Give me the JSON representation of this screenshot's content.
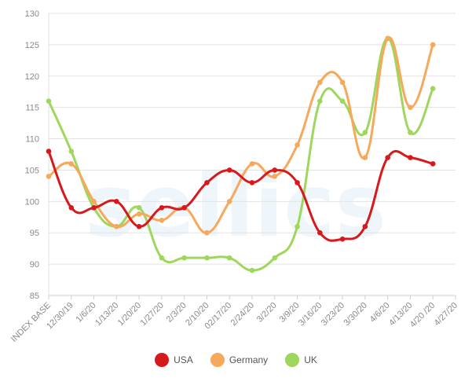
{
  "chart_data": {
    "type": "line",
    "title": "",
    "xlabel": "",
    "ylabel": "",
    "categories": [
      "INDEX BASE",
      "12/30/19",
      "1/6/20",
      "1/13/20",
      "1/20/20",
      "1/27/20",
      "2/3/20",
      "2/10/20",
      "02/17/20",
      "2/24/20",
      "3/2/20",
      "3/9/20",
      "3/16/20",
      "3/23/20",
      "3/30/20",
      "4/6/20",
      "4/13/20",
      "4/20 /20",
      "4/27/20"
    ],
    "ylim": [
      85,
      130
    ],
    "yticks": [
      85,
      90,
      95,
      100,
      105,
      110,
      115,
      120,
      125,
      130
    ],
    "grid": true,
    "legend_position": "bottom",
    "series": [
      {
        "name": "USA",
        "color": "#d7191c",
        "x": [
          "INDEX BASE",
          "12/30/19",
          "1/6/20",
          "1/13/20",
          "1/20/20",
          "1/27/20",
          "2/3/20",
          "2/10/20",
          "02/17/20",
          "2/24/20",
          "3/2/20",
          "3/9/20",
          "3/16/20",
          "3/23/20",
          "3/30/20",
          "4/6/20",
          "4/13/20",
          "4/20 /20"
        ],
        "values": [
          108,
          99,
          99,
          100,
          96,
          99,
          99,
          103,
          105,
          103,
          105,
          103,
          95,
          94,
          96,
          107,
          107,
          106
        ]
      },
      {
        "name": "Germany",
        "color": "#f7a85a",
        "x": [
          "INDEX BASE",
          "12/30/19",
          "1/6/20",
          "1/13/20",
          "1/20/20",
          "1/27/20",
          "2/3/20",
          "2/10/20",
          "02/17/20",
          "2/24/20",
          "3/2/20",
          "3/9/20",
          "3/16/20",
          "3/23/20",
          "3/30/20",
          "4/6/20",
          "4/13/20",
          "4/20 /20"
        ],
        "values": [
          104,
          106,
          100,
          96,
          98,
          97,
          99,
          95,
          100,
          106,
          104,
          109,
          119,
          119,
          107,
          126,
          115,
          125
        ]
      },
      {
        "name": "UK",
        "color": "#9fd65c",
        "x": [
          "INDEX BASE",
          "12/30/19",
          "1/6/20",
          "1/13/20",
          "1/20/20",
          "1/27/20",
          "2/3/20",
          "2/10/20",
          "02/17/20",
          "2/24/20",
          "3/2/20",
          "3/9/20",
          "3/16/20",
          "3/23/20",
          "3/30/20",
          "4/6/20",
          "4/13/20",
          "4/20 /20"
        ],
        "values": [
          116,
          108,
          99,
          96,
          99,
          91,
          91,
          91,
          91,
          89,
          91,
          96,
          116,
          116,
          111,
          126,
          111,
          118
        ]
      }
    ]
  }
}
